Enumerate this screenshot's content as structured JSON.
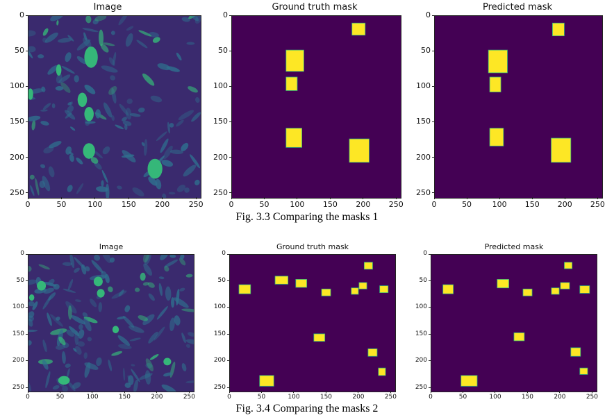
{
  "figures": [
    {
      "caption": "Fig. 3.3 Comparing the masks 1",
      "panels": [
        {
          "title": "Image",
          "kind": "photo",
          "xticks": [
            "0",
            "50",
            "100",
            "150",
            "200",
            "250"
          ],
          "yticks": [
            "0",
            "50",
            "100",
            "150",
            "200",
            "250"
          ],
          "fruits": [
            [
              93,
              58,
              10,
              15
            ],
            [
              80,
              118,
              7,
              10
            ],
            [
              90,
              138,
              7,
              10
            ],
            [
              45,
              76,
              4,
              8
            ],
            [
              90,
              190,
              9,
              11
            ],
            [
              188,
              215,
              11,
              14
            ],
            [
              3,
              110,
              4,
              8
            ]
          ]
        },
        {
          "title": "Ground truth mask",
          "kind": "mask",
          "xticks": [
            "0",
            "50",
            "100",
            "150",
            "200",
            "250"
          ],
          "yticks": [
            "0",
            "50",
            "100",
            "150",
            "200",
            "250"
          ],
          "boxes": [
            [
              182,
              10,
              20,
              17
            ],
            [
              82,
              48,
              27,
              30
            ],
            [
              82,
              86,
              17,
              19
            ],
            [
              82,
              158,
              24,
              27
            ],
            [
              178,
              173,
              30,
              33
            ]
          ]
        },
        {
          "title": "Predicted mask",
          "kind": "mask",
          "xticks": [
            "0",
            "50",
            "100",
            "150",
            "200",
            "250"
          ],
          "yticks": [
            "0",
            "50",
            "100",
            "150",
            "200",
            "250"
          ],
          "boxes": [
            [
              180,
              10,
              18,
              18
            ],
            [
              82,
              48,
              29,
              32
            ],
            [
              84,
              86,
              17,
              21
            ],
            [
              84,
              158,
              21,
              25
            ],
            [
              178,
              172,
              30,
              34
            ]
          ]
        }
      ]
    },
    {
      "caption": "Fig. 3.4 Comparing the masks 2",
      "panels": [
        {
          "title": "Image",
          "kind": "photo",
          "xticks": [
            "0",
            "50",
            "100",
            "150",
            "200",
            "250"
          ],
          "yticks": [
            "0",
            "50",
            "100",
            "150",
            "200",
            "250"
          ],
          "fruits": [
            [
              20,
              58,
              7,
              9
            ],
            [
              108,
              50,
              7,
              9
            ],
            [
              112,
              72,
              6,
              8
            ],
            [
              135,
              140,
              5,
              7
            ],
            [
              55,
              235,
              9,
              8
            ],
            [
              215,
              200,
              6,
              7
            ],
            [
              5,
              80,
              4,
              6
            ]
          ]
        },
        {
          "title": "Ground truth mask",
          "kind": "mask",
          "xticks": [
            "0",
            "50",
            "100",
            "150",
            "200",
            "250"
          ],
          "yticks": [
            "0",
            "50",
            "100",
            "150",
            "200",
            "250"
          ],
          "boxes": [
            [
              14,
              56,
              18,
              17
            ],
            [
              70,
              40,
              20,
              15
            ],
            [
              102,
              46,
              17,
              15
            ],
            [
              142,
              64,
              14,
              13
            ],
            [
              208,
              14,
              13,
              13
            ],
            [
              200,
              52,
              12,
              12
            ],
            [
              188,
              62,
              11,
              12
            ],
            [
              232,
              58,
              13,
              13
            ],
            [
              130,
              148,
              17,
              14
            ],
            [
              214,
              176,
              14,
              14
            ],
            [
              230,
              212,
              11,
              14
            ],
            [
              46,
              226,
              22,
              20
            ]
          ]
        },
        {
          "title": "Predicted mask",
          "kind": "mask",
          "xticks": [
            "0",
            "50",
            "100",
            "150",
            "200",
            "250"
          ],
          "yticks": [
            "0",
            "50",
            "100",
            "150",
            "200",
            "250"
          ],
          "boxes": [
            [
              18,
              56,
              16,
              17
            ],
            [
              102,
              46,
              18,
              16
            ],
            [
              142,
              64,
              14,
              13
            ],
            [
              206,
              14,
              12,
              12
            ],
            [
              200,
              52,
              14,
              12
            ],
            [
              186,
              62,
              12,
              12
            ],
            [
              230,
              58,
              15,
              14
            ],
            [
              128,
              146,
              16,
              15
            ],
            [
              216,
              174,
              15,
              16
            ],
            [
              230,
              212,
              12,
              12
            ],
            [
              46,
              226,
              25,
              20
            ]
          ]
        }
      ]
    }
  ],
  "colors": {
    "mask_background": "#440154",
    "mask_foreground": "#fde725",
    "edge": "#35b779",
    "photo_dark": "#3a2a6e",
    "photo_mid": "#2f6f8e",
    "photo_light": "#35b779"
  }
}
